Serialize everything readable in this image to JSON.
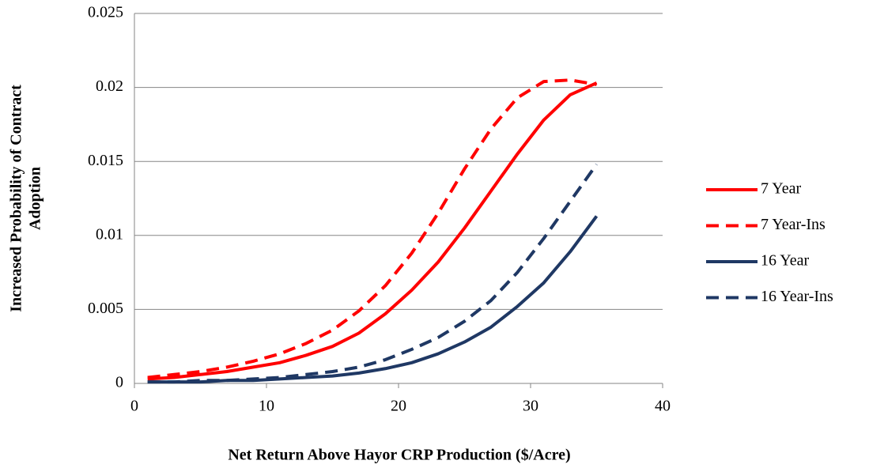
{
  "chart_data": {
    "type": "line",
    "ylabel": [
      "Increased Probability of Contract",
      "Adoption"
    ],
    "xlabel": "Net Return Above Hayor CRP Production ($/Acre)",
    "x": [
      1,
      3,
      5,
      7,
      9,
      11,
      13,
      15,
      17,
      19,
      21,
      23,
      25,
      27,
      29,
      31,
      33,
      35
    ],
    "series": [
      {
        "name": "7 Year",
        "color": "#ff0000",
        "dashed": false,
        "values": [
          0.0003,
          0.0004,
          0.0006,
          0.0008,
          0.0011,
          0.0014,
          0.0019,
          0.0025,
          0.0034,
          0.0047,
          0.0063,
          0.0082,
          0.0105,
          0.013,
          0.0155,
          0.0178,
          0.0195,
          0.0203
        ]
      },
      {
        "name": "7 Year-Ins",
        "color": "#ff0000",
        "dashed": true,
        "values": [
          0.0004,
          0.0006,
          0.0008,
          0.0011,
          0.0015,
          0.002,
          0.0027,
          0.0036,
          0.0049,
          0.0066,
          0.0088,
          0.0115,
          0.0145,
          0.0172,
          0.0193,
          0.0204,
          0.0205,
          0.0202
        ]
      },
      {
        "name": "16 Year",
        "color": "#1f3864",
        "dashed": false,
        "values": [
          0.0001,
          0.0001,
          0.0001,
          0.0002,
          0.0002,
          0.0003,
          0.0004,
          0.0005,
          0.0007,
          0.001,
          0.0014,
          0.002,
          0.0028,
          0.0038,
          0.0052,
          0.0068,
          0.0089,
          0.0113
        ]
      },
      {
        "name": "16 Year-Ins",
        "color": "#1f3864",
        "dashed": true,
        "values": [
          0.0001,
          0.0001,
          0.0002,
          0.0002,
          0.0003,
          0.0004,
          0.0006,
          0.0008,
          0.0011,
          0.0016,
          0.0023,
          0.0031,
          0.0042,
          0.0056,
          0.0075,
          0.0098,
          0.0123,
          0.0148
        ]
      }
    ],
    "xlim": [
      0,
      40
    ],
    "xticks": [
      0,
      10,
      20,
      30,
      40
    ],
    "ylim": [
      0,
      0.025
    ],
    "yticks": [
      0,
      0.005,
      0.01,
      0.015,
      0.02,
      0.025
    ],
    "grid": true,
    "legend": "right"
  }
}
